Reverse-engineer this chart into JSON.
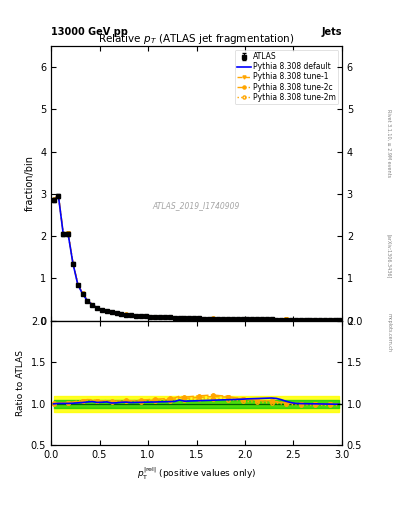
{
  "title": "Relative $p_{T}$ (ATLAS jet fragmentation)",
  "top_left_label": "13000 GeV pp",
  "top_right_label": "Jets",
  "ylabel_main": "fraction/bin",
  "ylabel_ratio": "Ratio to ATLAS",
  "rivet_label": "Rivet 3.1.10, ≥ 2.9M events",
  "arxiv_label": "[arXiv:1306.3436]",
  "inspire_label": "mcplots.cern.ch",
  "watermark": "ATLAS_2019_I1740909",
  "data_x": [
    0.025,
    0.075,
    0.125,
    0.175,
    0.225,
    0.275,
    0.325,
    0.375,
    0.425,
    0.475,
    0.525,
    0.575,
    0.625,
    0.675,
    0.725,
    0.775,
    0.825,
    0.875,
    0.925,
    0.975,
    1.025,
    1.075,
    1.125,
    1.175,
    1.225,
    1.275,
    1.325,
    1.375,
    1.425,
    1.475,
    1.525,
    1.575,
    1.625,
    1.675,
    1.725,
    1.775,
    1.825,
    1.875,
    1.925,
    1.975,
    2.025,
    2.075,
    2.125,
    2.175,
    2.225,
    2.275,
    2.325,
    2.375,
    2.425,
    2.475,
    2.525,
    2.575,
    2.625,
    2.675,
    2.725,
    2.775,
    2.825,
    2.875,
    2.925,
    2.975
  ],
  "data_y": [
    2.85,
    2.95,
    2.05,
    2.05,
    1.35,
    0.85,
    0.62,
    0.46,
    0.37,
    0.3,
    0.26,
    0.22,
    0.2,
    0.17,
    0.16,
    0.14,
    0.13,
    0.12,
    0.11,
    0.1,
    0.095,
    0.09,
    0.085,
    0.08,
    0.075,
    0.07,
    0.065,
    0.062,
    0.058,
    0.055,
    0.052,
    0.05,
    0.048,
    0.046,
    0.044,
    0.042,
    0.04,
    0.038,
    0.036,
    0.035,
    0.033,
    0.032,
    0.03,
    0.029,
    0.028,
    0.027,
    0.026,
    0.025,
    0.024,
    0.023,
    0.022,
    0.021,
    0.02,
    0.019,
    0.018,
    0.017,
    0.016,
    0.015,
    0.014,
    0.013
  ],
  "data_yerr": [
    0.05,
    0.05,
    0.04,
    0.04,
    0.03,
    0.02,
    0.015,
    0.012,
    0.01,
    0.009,
    0.008,
    0.007,
    0.006,
    0.006,
    0.005,
    0.005,
    0.005,
    0.004,
    0.004,
    0.004,
    0.003,
    0.003,
    0.003,
    0.003,
    0.003,
    0.003,
    0.003,
    0.003,
    0.003,
    0.002,
    0.002,
    0.002,
    0.002,
    0.002,
    0.002,
    0.002,
    0.002,
    0.002,
    0.002,
    0.002,
    0.002,
    0.002,
    0.002,
    0.002,
    0.002,
    0.002,
    0.002,
    0.002,
    0.002,
    0.002,
    0.002,
    0.002,
    0.002,
    0.002,
    0.001,
    0.001,
    0.001,
    0.001,
    0.001,
    0.001
  ],
  "pythia_default_y": [
    2.84,
    2.96,
    2.06,
    2.06,
    1.36,
    0.86,
    0.63,
    0.47,
    0.38,
    0.3,
    0.265,
    0.225,
    0.202,
    0.172,
    0.163,
    0.143,
    0.132,
    0.122,
    0.112,
    0.102,
    0.097,
    0.092,
    0.087,
    0.082,
    0.077,
    0.072,
    0.068,
    0.064,
    0.06,
    0.057,
    0.054,
    0.052,
    0.05,
    0.048,
    0.046,
    0.044,
    0.042,
    0.04,
    0.038,
    0.037,
    0.035,
    0.034,
    0.032,
    0.031,
    0.03,
    0.029,
    0.028,
    0.027,
    0.026,
    0.025,
    0.024,
    0.023,
    0.022,
    0.021,
    0.02,
    0.019,
    0.018,
    0.017,
    0.016,
    0.015
  ],
  "pythia_tune1_y": [
    2.86,
    2.97,
    2.07,
    2.07,
    1.37,
    0.87,
    0.64,
    0.48,
    0.385,
    0.305,
    0.268,
    0.228,
    0.205,
    0.175,
    0.165,
    0.145,
    0.134,
    0.124,
    0.114,
    0.104,
    0.099,
    0.094,
    0.089,
    0.084,
    0.079,
    0.074,
    0.07,
    0.066,
    0.062,
    0.059,
    0.056,
    0.054,
    0.052,
    0.05,
    0.048,
    0.046,
    0.044,
    0.042,
    0.04,
    0.039,
    0.037,
    0.036,
    0.034,
    0.033,
    0.032,
    0.031,
    0.03,
    0.029,
    0.028,
    0.027,
    0.026,
    0.025,
    0.024,
    0.023,
    0.022,
    0.021,
    0.02,
    0.019,
    0.018,
    0.017
  ],
  "pythia_tune2c_y": [
    2.87,
    2.98,
    2.08,
    2.08,
    1.38,
    0.88,
    0.645,
    0.482,
    0.387,
    0.307,
    0.269,
    0.229,
    0.206,
    0.176,
    0.166,
    0.146,
    0.135,
    0.125,
    0.115,
    0.105,
    0.1,
    0.095,
    0.09,
    0.085,
    0.08,
    0.075,
    0.071,
    0.067,
    0.063,
    0.06,
    0.057,
    0.055,
    0.053,
    0.051,
    0.049,
    0.047,
    0.045,
    0.043,
    0.041,
    0.04,
    0.038,
    0.037,
    0.035,
    0.034,
    0.033,
    0.032,
    0.031,
    0.03,
    0.029,
    0.028,
    0.027,
    0.026,
    0.025,
    0.024,
    0.023,
    0.022,
    0.021,
    0.02,
    0.019,
    0.018
  ],
  "pythia_tune2m_y": [
    2.86,
    2.97,
    2.07,
    2.07,
    1.37,
    0.87,
    0.64,
    0.48,
    0.385,
    0.305,
    0.267,
    0.227,
    0.204,
    0.174,
    0.164,
    0.144,
    0.133,
    0.123,
    0.113,
    0.103,
    0.098,
    0.093,
    0.088,
    0.083,
    0.078,
    0.073,
    0.069,
    0.065,
    0.061,
    0.058,
    0.055,
    0.053,
    0.051,
    0.049,
    0.047,
    0.045,
    0.043,
    0.041,
    0.039,
    0.038,
    0.036,
    0.035,
    0.033,
    0.032,
    0.031,
    0.03,
    0.029,
    0.028,
    0.027,
    0.026,
    0.025,
    0.024,
    0.023,
    0.022,
    0.021,
    0.02,
    0.019,
    0.018,
    0.017,
    0.016
  ],
  "ratio_default": [
    1.0,
    1.005,
    1.005,
    1.005,
    1.007,
    1.012,
    1.016,
    1.022,
    1.027,
    1.017,
    1.019,
    1.023,
    1.01,
    1.012,
    1.019,
    1.021,
    1.015,
    1.017,
    1.018,
    1.02,
    1.021,
    1.022,
    1.024,
    1.025,
    1.027,
    1.029,
    1.046,
    1.032,
    1.034,
    1.036,
    1.038,
    1.04,
    1.042,
    1.044,
    1.046,
    1.048,
    1.05,
    1.052,
    1.054,
    1.056,
    1.06,
    1.062,
    1.064,
    1.066,
    1.068,
    1.07,
    1.065,
    1.05,
    1.03,
    1.015,
    1.005,
    1.003,
    1.002,
    1.001,
    1.0,
    0.999,
    0.998,
    0.997,
    0.996,
    0.995
  ],
  "ratio_tune1": [
    1.004,
    1.007,
    1.01,
    1.01,
    1.015,
    1.024,
    1.032,
    1.043,
    1.041,
    1.033,
    1.031,
    1.036,
    1.025,
    1.029,
    1.031,
    1.036,
    1.031,
    1.033,
    1.036,
    1.04,
    1.042,
    1.044,
    1.047,
    1.05,
    1.053,
    1.057,
    1.077,
    1.065,
    1.069,
    1.073,
    1.077,
    1.081,
    1.085,
    1.087,
    1.085,
    1.083,
    1.079,
    1.073,
    1.067,
    1.061,
    1.055,
    1.05,
    1.045,
    1.04,
    1.038,
    1.036,
    1.028,
    1.02,
    1.012,
    1.008,
    1.005,
    1.003,
    1.002,
    1.001,
    1.0,
    0.999,
    0.998,
    0.997,
    0.996,
    0.995
  ],
  "ratio_tune2c": [
    1.007,
    1.01,
    1.015,
    1.015,
    1.022,
    1.035,
    1.04,
    1.052,
    1.049,
    1.04,
    1.035,
    1.041,
    1.03,
    1.035,
    1.038,
    1.043,
    1.038,
    1.04,
    1.045,
    1.049,
    1.053,
    1.056,
    1.059,
    1.063,
    1.067,
    1.071,
    1.092,
    1.081,
    1.086,
    1.091,
    1.096,
    1.1,
    1.104,
    1.106,
    1.101,
    1.095,
    1.088,
    1.078,
    1.069,
    1.06,
    1.052,
    1.047,
    1.042,
    1.037,
    1.035,
    1.03,
    1.022,
    1.015,
    1.01,
    1.006,
    1.004,
    1.002,
    1.001,
    1.0,
    0.999,
    0.998,
    0.997,
    0.996,
    0.995,
    0.994
  ],
  "ratio_tune2m": [
    1.004,
    1.007,
    1.01,
    1.01,
    1.015,
    1.024,
    1.032,
    1.043,
    1.041,
    1.033,
    1.03,
    1.032,
    1.02,
    1.024,
    1.025,
    1.029,
    1.023,
    1.025,
    1.027,
    1.03,
    1.031,
    1.033,
    1.035,
    1.038,
    1.04,
    1.043,
    1.062,
    1.048,
    1.052,
    1.055,
    1.058,
    1.06,
    1.062,
    1.063,
    1.06,
    1.057,
    1.052,
    1.046,
    1.04,
    1.034,
    1.028,
    1.024,
    1.02,
    1.016,
    1.014,
    1.012,
    1.005,
    0.999,
    0.993,
    0.99,
    0.988,
    0.987,
    0.986,
    0.985,
    0.984,
    0.983,
    0.982,
    0.981,
    0.98,
    0.979
  ],
  "data_color": "#000000",
  "pythia_default_color": "#0000ff",
  "pythia_tune1_color": "#ffa500",
  "pythia_tune2c_color": "#ffa500",
  "pythia_tune2m_color": "#ffa500",
  "green_band_inner": 0.05,
  "yellow_band_outer": 0.1,
  "xlim": [
    0,
    3
  ],
  "ylim_main": [
    0,
    6.5
  ],
  "ylim_ratio": [
    0.5,
    2.0
  ],
  "yticks_main": [
    0,
    1,
    2,
    3,
    4,
    5,
    6
  ],
  "yticks_ratio": [
    0.5,
    1.0,
    1.5,
    2.0
  ]
}
